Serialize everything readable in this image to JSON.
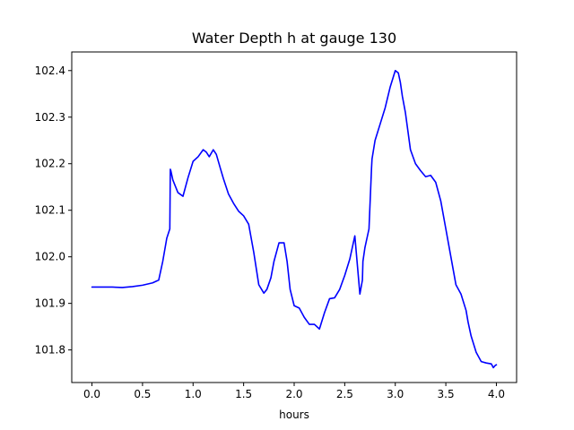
{
  "chart_data": {
    "type": "line",
    "title": "Water Depth h at gauge 130",
    "xlabel": "hours",
    "ylabel": "",
    "xlim": [
      -0.2,
      4.2
    ],
    "ylim": [
      101.73,
      102.44
    ],
    "grid": false,
    "x_ticks": [
      0.0,
      0.5,
      1.0,
      1.5,
      2.0,
      2.5,
      3.0,
      3.5,
      4.0
    ],
    "x_tick_labels": [
      "0.0",
      "0.5",
      "1.0",
      "1.5",
      "2.0",
      "2.5",
      "3.0",
      "3.5",
      "4.0"
    ],
    "y_ticks": [
      101.8,
      101.9,
      102.0,
      102.1,
      102.2,
      102.3,
      102.4
    ],
    "y_tick_labels": [
      "101.8",
      "101.9",
      "102.0",
      "102.1",
      "102.2",
      "102.3",
      "102.4"
    ],
    "series": [
      {
        "color": "#0000ff",
        "x": [
          0.0,
          0.1,
          0.2,
          0.3,
          0.4,
          0.5,
          0.6,
          0.66,
          0.7,
          0.74,
          0.77,
          0.775,
          0.78,
          0.8,
          0.85,
          0.9,
          0.95,
          1.0,
          1.05,
          1.1,
          1.13,
          1.16,
          1.2,
          1.23,
          1.27,
          1.3,
          1.35,
          1.4,
          1.45,
          1.5,
          1.55,
          1.6,
          1.65,
          1.7,
          1.73,
          1.77,
          1.8,
          1.85,
          1.9,
          1.93,
          1.96,
          2.0,
          2.05,
          2.1,
          2.15,
          2.2,
          2.25,
          2.3,
          2.35,
          2.4,
          2.45,
          2.5,
          2.55,
          2.6,
          2.65,
          2.675,
          2.68,
          2.7,
          2.74,
          2.765,
          2.77,
          2.8,
          2.85,
          2.9,
          2.95,
          3.0,
          3.03,
          3.05,
          3.07,
          3.1,
          3.15,
          3.2,
          3.25,
          3.3,
          3.35,
          3.4,
          3.45,
          3.5,
          3.55,
          3.6,
          3.65,
          3.7,
          3.72,
          3.75,
          3.8,
          3.85,
          3.9,
          3.95,
          3.97,
          3.99,
          4.0
        ],
        "y": [
          101.935,
          101.935,
          101.935,
          101.934,
          101.936,
          101.939,
          101.944,
          101.95,
          101.99,
          102.04,
          102.06,
          102.188,
          102.185,
          102.165,
          102.138,
          102.13,
          102.17,
          102.205,
          102.215,
          102.23,
          102.225,
          102.215,
          102.23,
          102.22,
          102.19,
          102.168,
          102.135,
          102.115,
          102.098,
          102.088,
          102.07,
          102.01,
          101.94,
          101.922,
          101.93,
          101.955,
          101.99,
          102.03,
          102.03,
          101.99,
          101.93,
          101.895,
          101.89,
          101.87,
          101.855,
          101.855,
          101.845,
          101.88,
          101.91,
          101.912,
          101.93,
          101.96,
          101.995,
          102.045,
          101.92,
          101.95,
          101.99,
          102.02,
          102.06,
          102.19,
          102.21,
          102.25,
          102.285,
          102.32,
          102.365,
          102.4,
          102.395,
          102.375,
          102.345,
          102.31,
          102.23,
          102.2,
          102.185,
          102.172,
          102.175,
          102.16,
          102.12,
          102.06,
          102.0,
          101.94,
          101.92,
          101.885,
          101.86,
          101.83,
          101.795,
          101.775,
          101.772,
          101.77,
          101.762,
          101.767,
          101.768
        ]
      }
    ]
  }
}
